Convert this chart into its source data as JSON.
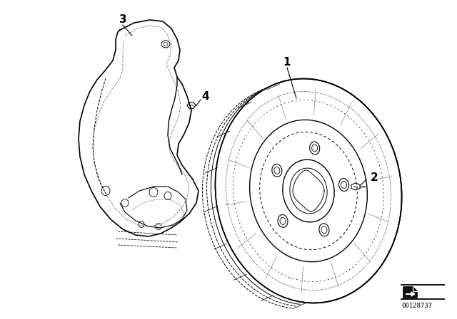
{
  "bg_color": "#ffffff",
  "line_color": "#000000",
  "fig_width": 6.4,
  "fig_height": 4.48,
  "dpi": 100,
  "diagram_id": "00128737"
}
